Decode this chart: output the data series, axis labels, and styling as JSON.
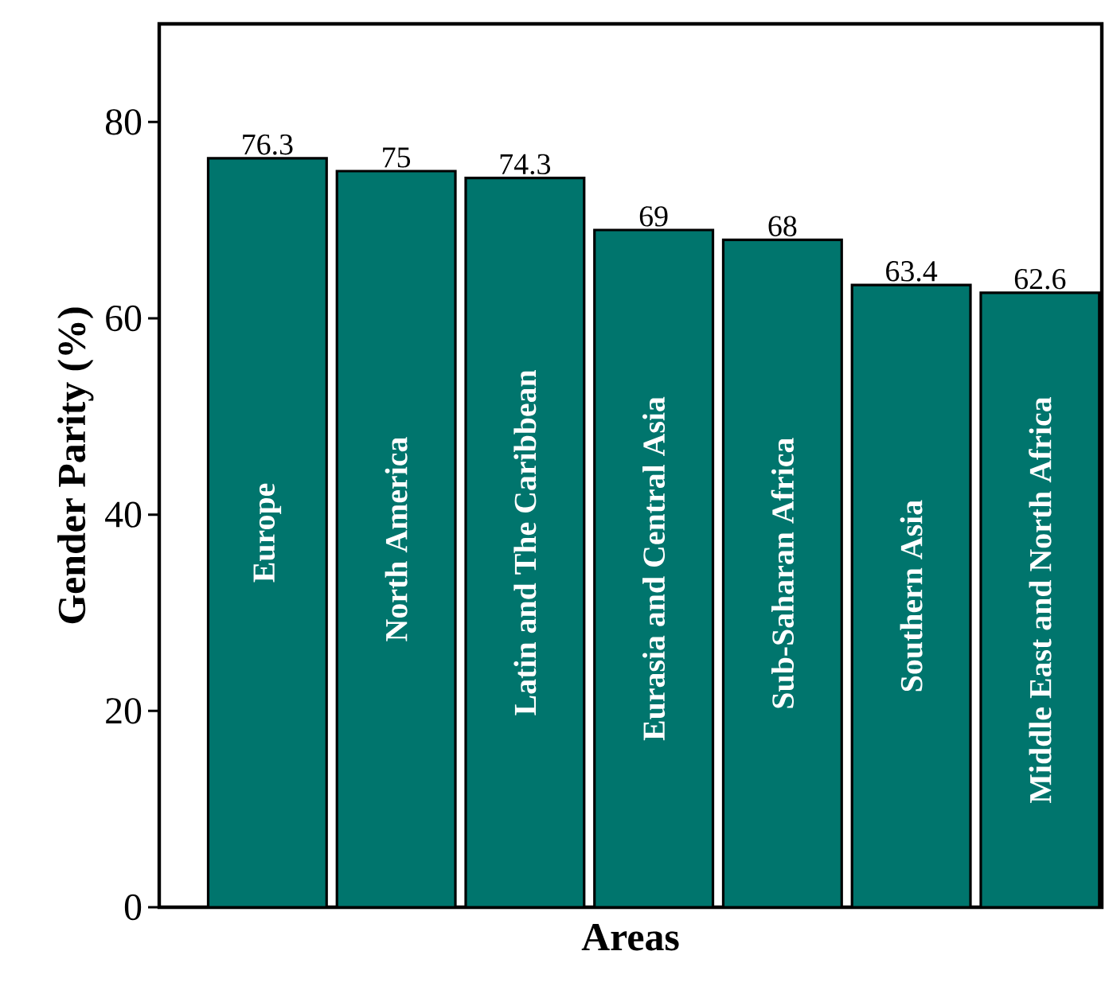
{
  "chart_data": {
    "type": "bar",
    "xlabel": "Areas",
    "ylabel": "Gender Parity (%)",
    "categories": [
      "Europe",
      "North America",
      "Latin  and The Caribbean",
      "Eurasia and Central Asia",
      "Sub-Saharan Africa",
      "Southern Asia",
      "Middle East and North Africa"
    ],
    "values": [
      76.3,
      75,
      74.3,
      69,
      68,
      63.4,
      62.6
    ],
    "color": "#00756d",
    "ylim": [
      0,
      90
    ],
    "yticks": [
      0,
      20,
      40,
      60,
      80
    ],
    "data_labels": true,
    "grid": false
  }
}
